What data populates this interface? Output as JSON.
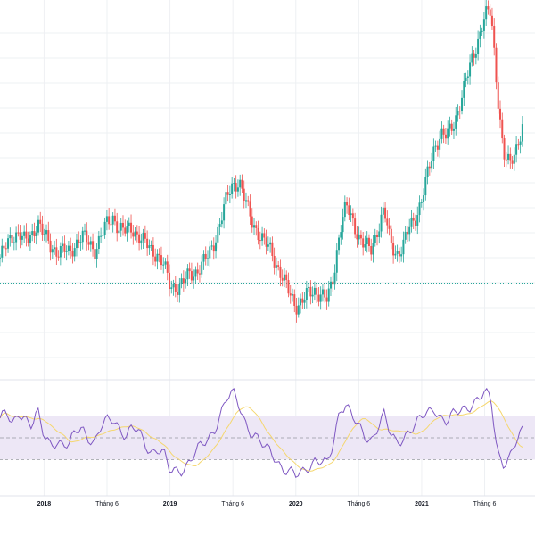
{
  "chart_data": {
    "type": "candlestick",
    "colors": {
      "up": "#26a69a",
      "down": "#ef5350",
      "rsi_line": "#7e57c2",
      "rsi_ma": "#f5d76e",
      "rsi_band_fill": "#ede7f6",
      "rsi_band_border": "#9598a1",
      "baseline": "#26a69a",
      "grid": "#eef0f3"
    },
    "x_labels": [
      "2018",
      "Tháng 6",
      "2019",
      "Tháng 6",
      "2020",
      "Tháng 6",
      "2021",
      "Tháng 6"
    ],
    "x_label_positions": [
      0.0,
      0.5,
      1.0,
      1.5,
      2.0,
      2.5,
      3.0,
      3.5
    ],
    "x_range": [
      -0.35,
      3.9
    ],
    "price_ylim": [
      0,
      100
    ],
    "price_reference_level": 25,
    "price_path": [
      [
        -0.35,
        32
      ],
      [
        -0.3,
        35
      ],
      [
        -0.25,
        38
      ],
      [
        -0.2,
        39
      ],
      [
        -0.15,
        36
      ],
      [
        -0.1,
        38
      ],
      [
        -0.05,
        42
      ],
      [
        0.0,
        38
      ],
      [
        0.05,
        35
      ],
      [
        0.1,
        34
      ],
      [
        0.15,
        34
      ],
      [
        0.2,
        33
      ],
      [
        0.25,
        36
      ],
      [
        0.3,
        38
      ],
      [
        0.35,
        36
      ],
      [
        0.4,
        34
      ],
      [
        0.45,
        38
      ],
      [
        0.5,
        41
      ],
      [
        0.55,
        43
      ],
      [
        0.6,
        40
      ],
      [
        0.65,
        39
      ],
      [
        0.7,
        40
      ],
      [
        0.75,
        38
      ],
      [
        0.8,
        36
      ],
      [
        0.85,
        34
      ],
      [
        0.9,
        33
      ],
      [
        0.95,
        30
      ],
      [
        1.0,
        24
      ],
      [
        1.05,
        24
      ],
      [
        1.1,
        25
      ],
      [
        1.15,
        27
      ],
      [
        1.2,
        28
      ],
      [
        1.25,
        30
      ],
      [
        1.3,
        32
      ],
      [
        1.35,
        36
      ],
      [
        1.4,
        42
      ],
      [
        1.45,
        48
      ],
      [
        1.5,
        52
      ],
      [
        1.55,
        53
      ],
      [
        1.6,
        47
      ],
      [
        1.65,
        42
      ],
      [
        1.7,
        39
      ],
      [
        1.75,
        36
      ],
      [
        1.8,
        34
      ],
      [
        1.85,
        30
      ],
      [
        1.9,
        26
      ],
      [
        1.95,
        22
      ],
      [
        2.0,
        19
      ],
      [
        2.05,
        20
      ],
      [
        2.1,
        22
      ],
      [
        2.15,
        23
      ],
      [
        2.2,
        22
      ],
      [
        2.25,
        20
      ],
      [
        2.3,
        27
      ],
      [
        2.35,
        40
      ],
      [
        2.4,
        46
      ],
      [
        2.45,
        42
      ],
      [
        2.5,
        38
      ],
      [
        2.55,
        35
      ],
      [
        2.6,
        34
      ],
      [
        2.65,
        40
      ],
      [
        2.7,
        45
      ],
      [
        2.75,
        36
      ],
      [
        2.8,
        33
      ],
      [
        2.85,
        35
      ],
      [
        2.9,
        40
      ],
      [
        2.95,
        43
      ],
      [
        3.0,
        48
      ],
      [
        3.05,
        55
      ],
      [
        3.1,
        62
      ],
      [
        3.15,
        66
      ],
      [
        3.2,
        65
      ],
      [
        3.25,
        68
      ],
      [
        3.3,
        74
      ],
      [
        3.35,
        80
      ],
      [
        3.4,
        86
      ],
      [
        3.45,
        92
      ],
      [
        3.5,
        98
      ],
      [
        3.55,
        99
      ],
      [
        3.6,
        78
      ],
      [
        3.65,
        60
      ],
      [
        3.7,
        57
      ],
      [
        3.75,
        62
      ],
      [
        3.8,
        68
      ]
    ],
    "rsi_ylim": [
      0,
      100
    ],
    "rsi_bands": [
      70,
      50,
      30
    ],
    "rsi_path": [
      [
        -0.35,
        68
      ],
      [
        -0.3,
        72
      ],
      [
        -0.25,
        60
      ],
      [
        -0.2,
        74
      ],
      [
        -0.15,
        70
      ],
      [
        -0.1,
        62
      ],
      [
        -0.05,
        72
      ],
      [
        0.0,
        50
      ],
      [
        0.05,
        45
      ],
      [
        0.1,
        48
      ],
      [
        0.15,
        44
      ],
      [
        0.2,
        42
      ],
      [
        0.25,
        55
      ],
      [
        0.3,
        60
      ],
      [
        0.35,
        52
      ],
      [
        0.4,
        45
      ],
      [
        0.45,
        58
      ],
      [
        0.5,
        65
      ],
      [
        0.55,
        68
      ],
      [
        0.6,
        60
      ],
      [
        0.65,
        52
      ],
      [
        0.7,
        58
      ],
      [
        0.75,
        55
      ],
      [
        0.8,
        45
      ],
      [
        0.85,
        38
      ],
      [
        0.9,
        40
      ],
      [
        0.95,
        35
      ],
      [
        1.0,
        18
      ],
      [
        1.05,
        20
      ],
      [
        1.1,
        22
      ],
      [
        1.15,
        28
      ],
      [
        1.2,
        35
      ],
      [
        1.25,
        42
      ],
      [
        1.3,
        48
      ],
      [
        1.35,
        58
      ],
      [
        1.4,
        72
      ],
      [
        1.45,
        85
      ],
      [
        1.5,
        90
      ],
      [
        1.55,
        80
      ],
      [
        1.6,
        65
      ],
      [
        1.65,
        55
      ],
      [
        1.7,
        48
      ],
      [
        1.75,
        40
      ],
      [
        1.8,
        38
      ],
      [
        1.85,
        30
      ],
      [
        1.9,
        22
      ],
      [
        1.95,
        18
      ],
      [
        2.0,
        14
      ],
      [
        2.05,
        18
      ],
      [
        2.1,
        25
      ],
      [
        2.15,
        30
      ],
      [
        2.2,
        28
      ],
      [
        2.25,
        24
      ],
      [
        2.3,
        45
      ],
      [
        2.35,
        78
      ],
      [
        2.4,
        82
      ],
      [
        2.45,
        70
      ],
      [
        2.5,
        58
      ],
      [
        2.55,
        50
      ],
      [
        2.6,
        48
      ],
      [
        2.65,
        62
      ],
      [
        2.7,
        72
      ],
      [
        2.75,
        52
      ],
      [
        2.8,
        44
      ],
      [
        2.85,
        50
      ],
      [
        2.9,
        58
      ],
      [
        2.95,
        62
      ],
      [
        3.0,
        68
      ],
      [
        3.05,
        72
      ],
      [
        3.1,
        78
      ],
      [
        3.15,
        70
      ],
      [
        3.2,
        65
      ],
      [
        3.25,
        70
      ],
      [
        3.3,
        74
      ],
      [
        3.35,
        78
      ],
      [
        3.4,
        82
      ],
      [
        3.45,
        86
      ],
      [
        3.5,
        90
      ],
      [
        3.55,
        85
      ],
      [
        3.6,
        38
      ],
      [
        3.65,
        28
      ],
      [
        3.7,
        32
      ],
      [
        3.75,
        45
      ],
      [
        3.8,
        55
      ]
    ]
  }
}
